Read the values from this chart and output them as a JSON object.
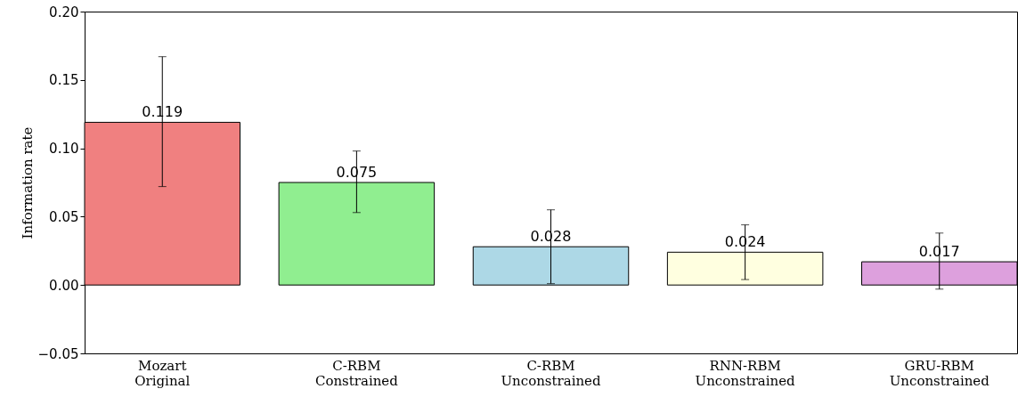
{
  "chart_data": {
    "type": "bar",
    "ylabel": "Information rate",
    "categories": [
      "Mozart\nOriginal",
      "C-RBM\nConstrained",
      "C-RBM\nUnconstrained",
      "RNN-RBM\nUnconstrained",
      "GRU-RBM\nUnconstrained"
    ],
    "values": [
      0.119,
      0.075,
      0.028,
      0.024,
      0.017
    ],
    "colors": [
      "#f08080",
      "#90ee90",
      "#add8e6",
      "#ffffe0",
      "#dda0dd"
    ],
    "errors": [
      [
        0.072,
        0.167
      ],
      [
        0.053,
        0.098
      ],
      [
        0.001,
        0.055
      ],
      [
        0.004,
        0.044
      ],
      [
        -0.003,
        0.038
      ]
    ],
    "data_labels": true,
    "ylim": [
      -0.05,
      0.2
    ],
    "yticks": [
      {
        "value": -0.05,
        "label": "−0.05"
      },
      {
        "value": 0,
        "label": "0.00"
      },
      {
        "value": 0.05,
        "label": "0.05"
      },
      {
        "value": 0.1,
        "label": "0.10"
      },
      {
        "value": 0.15,
        "label": "0.15"
      },
      {
        "value": 0.2,
        "label": "0.20"
      }
    ],
    "grid": false
  }
}
